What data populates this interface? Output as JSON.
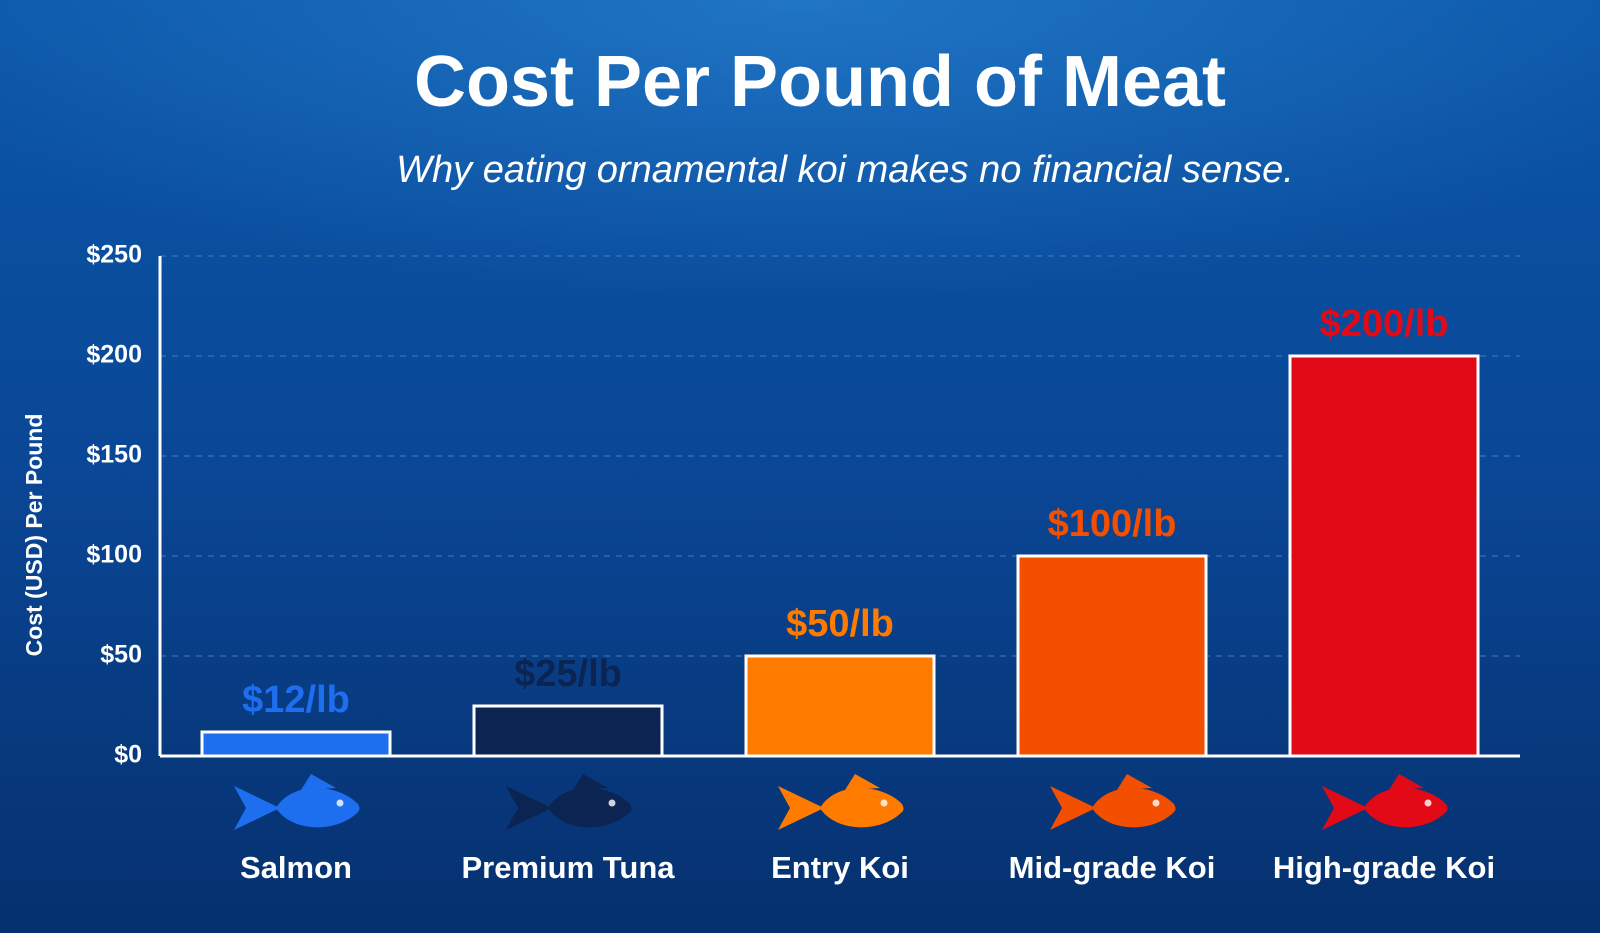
{
  "chart_data": {
    "type": "bar",
    "title": "Cost Per Pound of Meat",
    "subtitle": "Why eating ornamental koi makes no financial sense.",
    "y_label": "Cost (USD) Per Pound",
    "categories": [
      "Salmon",
      "Premium Tuna",
      "Entry Koi",
      "Mid-grade Koi",
      "High-grade Koi"
    ],
    "values": [
      12,
      25,
      50,
      100,
      200
    ],
    "value_labels": [
      "$12/lb",
      "$25/lb",
      "$50/lb",
      "$100/lb",
      "$200/lb"
    ],
    "colors": [
      "#1e6ff0",
      "#0c2452",
      "#ff7b00",
      "#f24f00",
      "#e30a17"
    ],
    "ylim": [
      0,
      250
    ],
    "yticks": [
      {
        "value": 0,
        "label": "$0"
      },
      {
        "value": 50,
        "label": "$50"
      },
      {
        "value": 100,
        "label": "$100"
      },
      {
        "value": 150,
        "label": "$150"
      },
      {
        "value": 200,
        "label": "$200"
      },
      {
        "value": 250,
        "label": "$250"
      }
    ],
    "grid": true
  }
}
